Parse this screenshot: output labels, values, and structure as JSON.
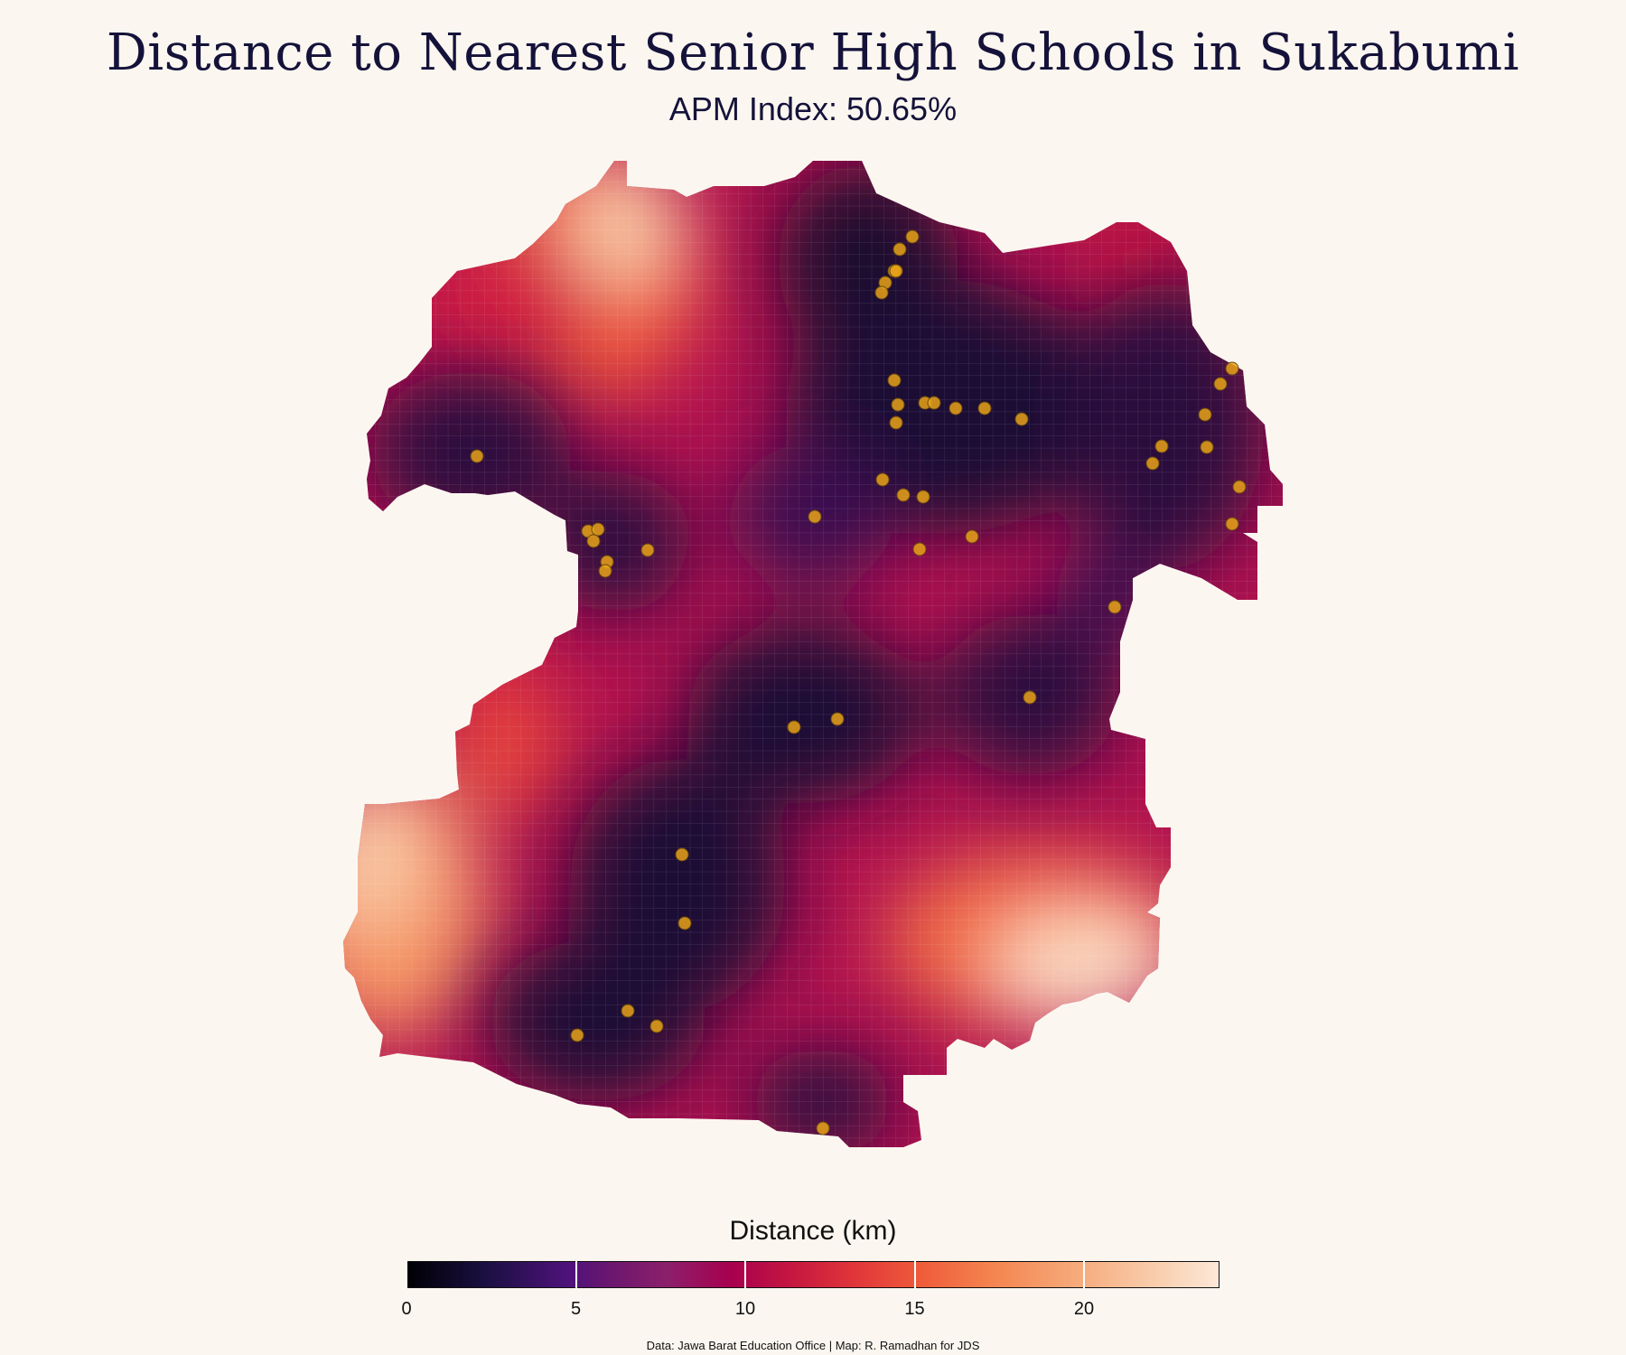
{
  "header": {
    "title": "Distance to Nearest Senior High Schools in Sukabumi",
    "subtitle": "APM Index: 50.65%"
  },
  "legend": {
    "title": "Distance (km)",
    "min": 0,
    "max": 24,
    "ticks": [
      "0",
      "5",
      "10",
      "15",
      "20"
    ],
    "tick_values": [
      0,
      5,
      10,
      15,
      20
    ],
    "colors": [
      "#000004",
      "#2a0d3e",
      "#5b1558",
      "#8a1a5d",
      "#b0114f",
      "#d21f42",
      "#e9463b",
      "#f26d44",
      "#f59463",
      "#f7b891",
      "#fbdcc3",
      "#fdefe4"
    ]
  },
  "source": "Data: Jawa Barat Education Office | Map: R. Ramadhan for JDS",
  "map": {
    "school_marker_color": "#e8a317",
    "background_color": "#fbf7f0"
  },
  "chart_data": {
    "type": "heatmap",
    "title": "Distance to Nearest Senior High Schools in Sukabumi",
    "subtitle": "APM Index: 50.65%",
    "legend_title": "Distance (km)",
    "color_scale": "magma-like",
    "value_range": [
      0,
      24
    ],
    "schools_count": 50
  }
}
